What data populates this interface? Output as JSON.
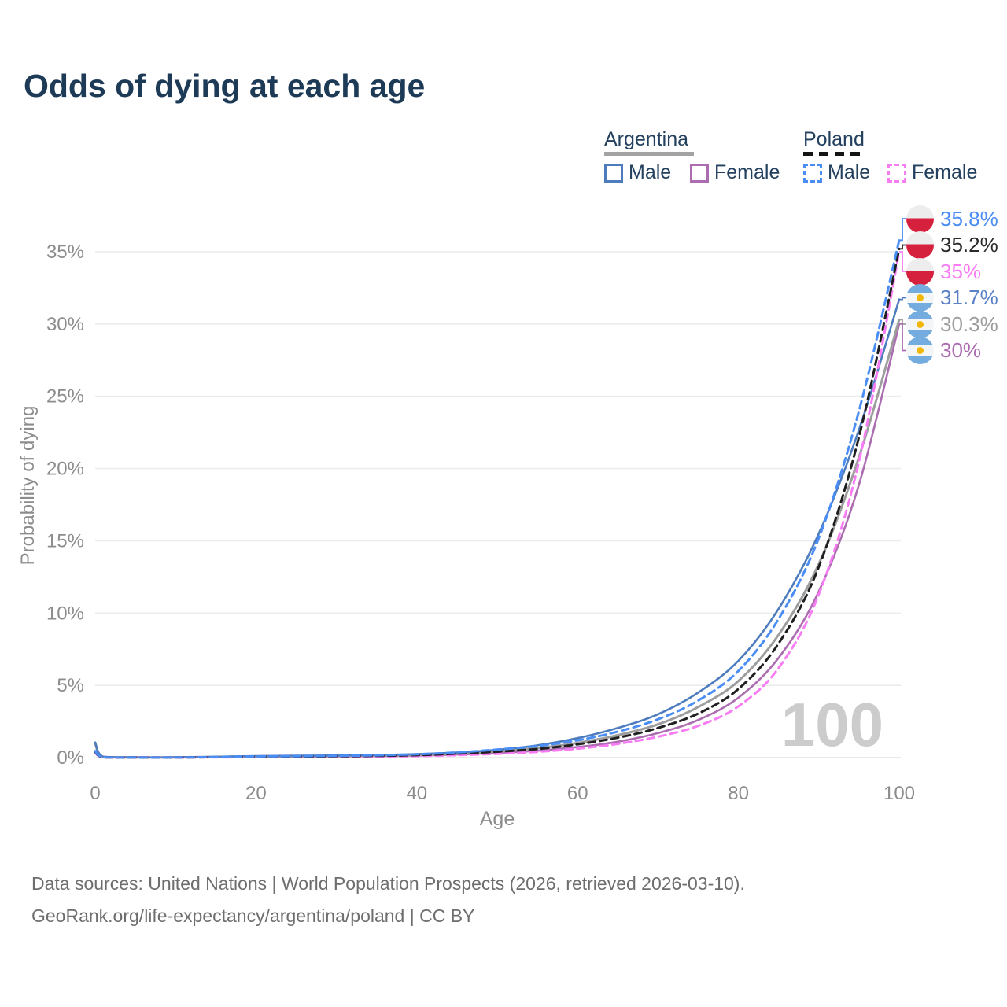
{
  "page": {
    "title": "Odds of dying at each age"
  },
  "colors": {
    "title_text": "#1d3a56",
    "legend_text": "#23405e",
    "axis_text": "#8c8c8c",
    "grid": "#ececec",
    "baseline": "#e2e2e2",
    "watermark": "#cccccc",
    "footer_text": "#6e6e6e",
    "argentina_underline": "#a3a3a3",
    "poland_underline": "#141414"
  },
  "flags": {
    "poland": {
      "top": "#ededee",
      "bottom": "#d6213e"
    },
    "argentina": {
      "band": "#74acdf",
      "middle": "#f3f5f7",
      "sun": "#f2b705"
    }
  },
  "legend": {
    "groups": [
      {
        "country": "Argentina",
        "style": "solid",
        "items": [
          {
            "label": "Male"
          },
          {
            "label": "Female"
          }
        ]
      },
      {
        "country": "Poland",
        "style": "dashed",
        "items": [
          {
            "label": "Male"
          },
          {
            "label": "Female"
          }
        ]
      }
    ]
  },
  "chart_data": {
    "type": "line",
    "title": "Odds of dying at each age",
    "xlabel": "Age",
    "ylabel": "Probability of dying",
    "xlim": [
      0,
      100
    ],
    "ylim": [
      0,
      35
    ],
    "x_ticks": [
      0,
      20,
      40,
      60,
      80,
      100
    ],
    "y_ticks": [
      0,
      5,
      10,
      15,
      20,
      25,
      30,
      35
    ],
    "y_tick_suffix": "%",
    "grid": "horizontal",
    "legend_position": "top-right",
    "watermark": "100",
    "x": [
      0,
      1,
      5,
      10,
      15,
      20,
      25,
      30,
      35,
      40,
      45,
      50,
      55,
      60,
      65,
      70,
      75,
      80,
      85,
      90,
      95,
      100
    ],
    "series": [
      {
        "id": "poland-male",
        "country": "Poland",
        "sex": "Male",
        "color": "#4a8df5",
        "dash": true,
        "width": 3,
        "end_label": "35.8%",
        "end_label_color": "#4a8df5",
        "flag": "poland",
        "values": [
          0.45,
          0.03,
          0.01,
          0.01,
          0.04,
          0.08,
          0.1,
          0.12,
          0.16,
          0.23,
          0.36,
          0.56,
          0.8,
          1.2,
          1.8,
          2.65,
          3.95,
          6.0,
          9.6,
          15.2,
          24.0,
          35.8
        ]
      },
      {
        "id": "poland-total",
        "country": "Poland",
        "sex": "Both",
        "color": "#1f1f1f",
        "dash": true,
        "width": 3,
        "end_label": "35.2%",
        "end_label_color": "#2a2a2a",
        "flag": "poland",
        "values": [
          0.4,
          0.025,
          0.01,
          0.01,
          0.03,
          0.06,
          0.07,
          0.09,
          0.12,
          0.17,
          0.27,
          0.41,
          0.6,
          0.92,
          1.38,
          2.05,
          3.05,
          4.75,
          7.9,
          13.2,
          22.2,
          35.2
        ]
      },
      {
        "id": "poland-female",
        "country": "Poland",
        "sex": "Female",
        "color": "#f87df5",
        "dash": true,
        "width": 3,
        "end_label": "35%",
        "end_label_color": "#f87df5",
        "flag": "poland",
        "values": [
          0.35,
          0.02,
          0.01,
          0.01,
          0.02,
          0.03,
          0.04,
          0.05,
          0.07,
          0.11,
          0.17,
          0.26,
          0.4,
          0.62,
          0.95,
          1.45,
          2.2,
          3.55,
          6.2,
          11.3,
          20.5,
          35.0
        ]
      },
      {
        "id": "argentina-male",
        "country": "Argentina",
        "sex": "Male",
        "color": "#4d7cbe",
        "dash": false,
        "width": 2.6,
        "end_label": "31.7%",
        "end_label_color": "#5b82c6",
        "flag": "argentina",
        "values": [
          1.05,
          0.06,
          0.02,
          0.02,
          0.06,
          0.11,
          0.13,
          0.15,
          0.18,
          0.24,
          0.35,
          0.54,
          0.85,
          1.35,
          2.05,
          3.0,
          4.5,
          6.7,
          10.3,
          15.5,
          22.7,
          31.7
        ]
      },
      {
        "id": "argentina-total",
        "country": "Argentina",
        "sex": "Both",
        "color": "#9d9d9d",
        "dash": false,
        "width": 3,
        "end_label": "30.3%",
        "end_label_color": "#9d9d9d",
        "flag": "argentina",
        "values": [
          1.0,
          0.055,
          0.018,
          0.018,
          0.05,
          0.08,
          0.1,
          0.12,
          0.14,
          0.19,
          0.28,
          0.43,
          0.66,
          1.02,
          1.55,
          2.3,
          3.5,
          5.3,
          8.5,
          13.4,
          20.8,
          30.3
        ]
      },
      {
        "id": "argentina-female",
        "country": "Argentina",
        "sex": "Female",
        "color": "#ab6cb0",
        "dash": false,
        "width": 2.6,
        "end_label": "30%",
        "end_label_color": "#ab6cb0",
        "flag": "argentina",
        "values": [
          0.95,
          0.05,
          0.015,
          0.015,
          0.04,
          0.05,
          0.06,
          0.08,
          0.1,
          0.14,
          0.21,
          0.32,
          0.48,
          0.73,
          1.1,
          1.7,
          2.6,
          4.15,
          6.9,
          11.5,
          18.9,
          30.0
        ]
      }
    ]
  },
  "footer": {
    "line1": "Data sources: United Nations | World Population Prospects (2026, retrieved 2026-03-10).",
    "line2": "GeoRank.org/life-expectancy/argentina/poland | CC BY"
  }
}
